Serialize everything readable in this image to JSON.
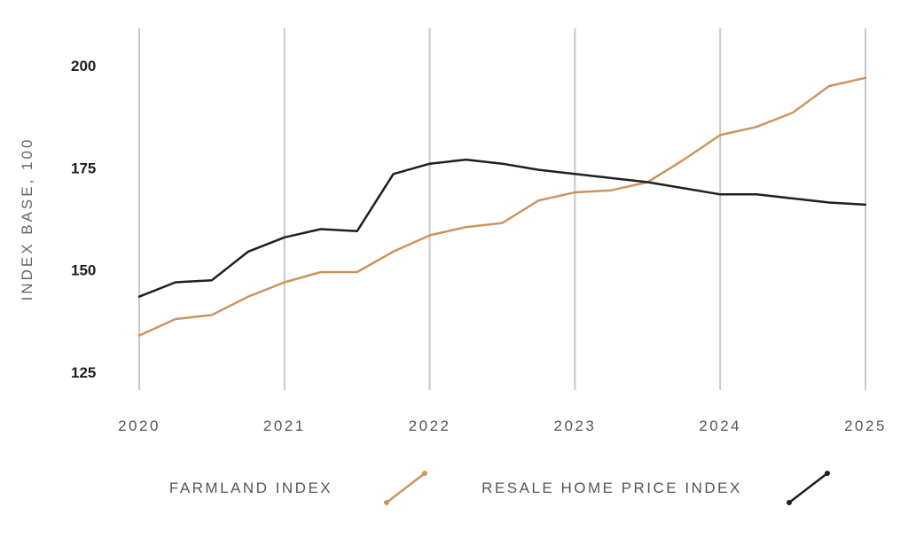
{
  "chart_data": {
    "type": "line",
    "title": "",
    "xlabel": "",
    "ylabel": "INDEX BASE, 100",
    "xlim": [
      2020,
      2025
    ],
    "ylim": [
      120,
      208
    ],
    "x_ticks": [
      2020,
      2021,
      2022,
      2023,
      2024,
      2025
    ],
    "x_tick_labels": [
      "2020",
      "2021",
      "2022",
      "2023",
      "2024",
      "2025"
    ],
    "y_ticks": [
      125,
      150,
      175,
      200
    ],
    "y_tick_labels": [
      "125",
      "150",
      "175",
      "200"
    ],
    "grid": "vertical",
    "legend_position": "bottom",
    "x": [
      2020,
      2020.25,
      2020.5,
      2020.75,
      2021,
      2021.25,
      2021.5,
      2021.75,
      2022,
      2022.25,
      2022.5,
      2022.75,
      2023,
      2023.25,
      2023.5,
      2023.75,
      2024,
      2024.25,
      2024.5,
      2024.75,
      2025
    ],
    "series": [
      {
        "name": "FARMLAND INDEX",
        "color": "#c9955f",
        "values": [
          134,
          138,
          139,
          143.5,
          147,
          149.5,
          149.5,
          154.5,
          158.5,
          160.5,
          161.5,
          167,
          169,
          169.5,
          171.5,
          177,
          183,
          185,
          188.5,
          195,
          197
        ]
      },
      {
        "name": "RESALE HOME PRICE INDEX",
        "color": "#1f1f1f",
        "values": [
          143.5,
          147,
          147.5,
          154.5,
          158,
          160,
          159.5,
          173.5,
          176,
          177,
          176,
          174.5,
          173.5,
          172.5,
          171.5,
          170,
          168.5,
          168.5,
          167.5,
          166.5,
          166
        ]
      }
    ]
  }
}
